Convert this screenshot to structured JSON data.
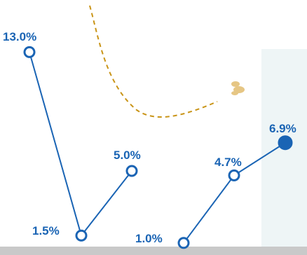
{
  "chart_data": {
    "type": "line",
    "series": [
      {
        "values": [
          13.0,
          1.5,
          5.0
        ]
      },
      {
        "values": [
          1.0,
          4.7,
          6.9
        ],
        "last_point_filled": true
      }
    ],
    "data_labels": [
      "13.0%",
      "1.5%",
      "5.0%",
      "1.0%",
      "4.7%",
      "6.9%"
    ],
    "ylim": [
      0,
      14
    ],
    "colors": {
      "line": "#1a64b4",
      "dashed_curve": "#c99417",
      "panel": "#eef5f6",
      "baseline": "#c9c9c9"
    },
    "grid": false
  }
}
